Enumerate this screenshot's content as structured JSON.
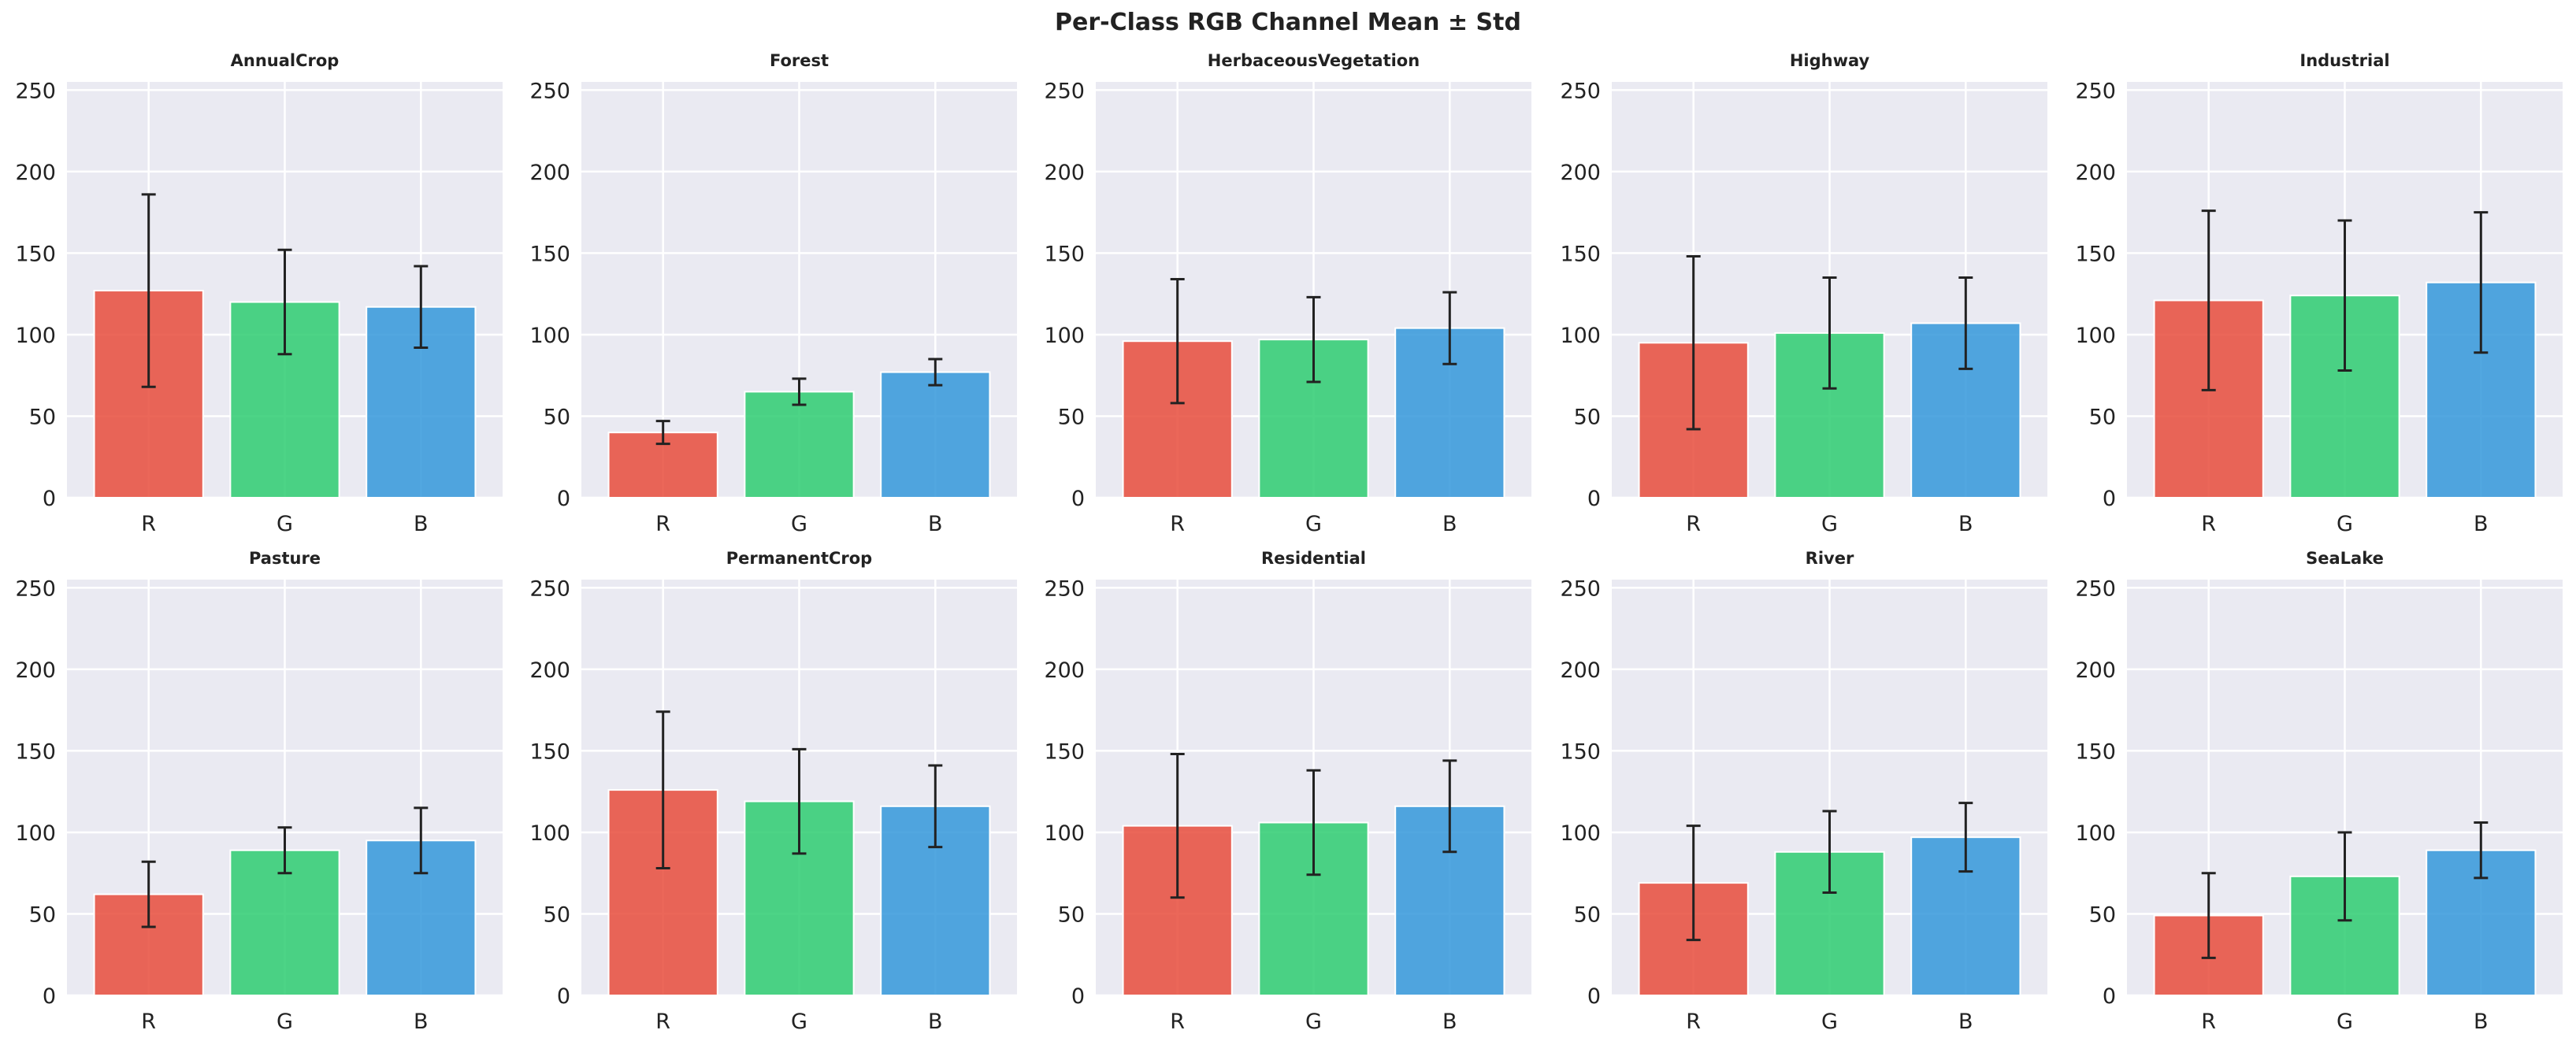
{
  "title": "Per-Class RGB Channel Mean ± Std",
  "colors": {
    "R": "#e74c3c",
    "G": "#2ecc71",
    "B": "#3498db",
    "panel_bg": "#eaeaf2",
    "grid": "#ffffff",
    "error": "#222222"
  },
  "chart_data": {
    "type": "bar",
    "categories": [
      "R",
      "G",
      "B"
    ],
    "ylim": [
      0,
      255
    ],
    "yticks": [
      0,
      50,
      100,
      150,
      200,
      250
    ],
    "grid": true,
    "error_bars": "mean ± std",
    "panels": [
      {
        "title": "AnnualCrop",
        "mean": [
          127,
          120,
          117
        ],
        "std": [
          59,
          32,
          25
        ]
      },
      {
        "title": "Forest",
        "mean": [
          40,
          65,
          77
        ],
        "std": [
          7,
          8,
          8
        ]
      },
      {
        "title": "HerbaceousVegetation",
        "mean": [
          96,
          97,
          104
        ],
        "std": [
          38,
          26,
          22
        ]
      },
      {
        "title": "Highway",
        "mean": [
          95,
          101,
          107
        ],
        "std": [
          53,
          34,
          28
        ]
      },
      {
        "title": "Industrial",
        "mean": [
          121,
          124,
          132
        ],
        "std": [
          55,
          46,
          43
        ]
      },
      {
        "title": "Pasture",
        "mean": [
          62,
          89,
          95
        ],
        "std": [
          20,
          14,
          20
        ]
      },
      {
        "title": "PermanentCrop",
        "mean": [
          126,
          119,
          116
        ],
        "std": [
          48,
          32,
          25
        ]
      },
      {
        "title": "Residential",
        "mean": [
          104,
          106,
          116
        ],
        "std": [
          44,
          32,
          28
        ]
      },
      {
        "title": "River",
        "mean": [
          69,
          88,
          97
        ],
        "std": [
          35,
          25,
          21
        ]
      },
      {
        "title": "SeaLake",
        "mean": [
          49,
          73,
          89
        ],
        "std": [
          26,
          27,
          17
        ]
      }
    ]
  }
}
